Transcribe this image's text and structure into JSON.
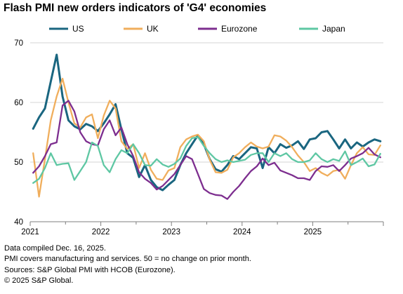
{
  "title": "Flash PMI new orders indicators of 'G4' economies",
  "notes": [
    "Data compiled Dec. 16, 2025.",
    "PMI covers manufacturing and services. 50 = no change on prior month.",
    "Sources: S&P Global PMI with HCOB (Eurozone).",
    "© 2025 S&P Global."
  ],
  "colors": {
    "US": "#1a6680",
    "UK": "#f0ae5c",
    "Eurozone": "#7d2e8f",
    "Japan": "#5ec7a3",
    "grid": "#d4d4d4",
    "axis": "#7f7f7f"
  },
  "chart_data": {
    "type": "line",
    "title": "Flash PMI new orders indicators of 'G4' economies",
    "xlabel": "",
    "ylabel": "",
    "ylim": [
      40,
      70
    ],
    "yticks": [
      40,
      50,
      60,
      70
    ],
    "xlim": [
      "2021-01",
      "2025-12"
    ],
    "xticks": [
      "2021",
      "2022",
      "2023",
      "2024",
      "2025"
    ],
    "grid": "horizontal",
    "legend": "top",
    "x": [
      "2021-01",
      "2021-02",
      "2021-03",
      "2021-04",
      "2021-05",
      "2021-06",
      "2021-07",
      "2021-08",
      "2021-09",
      "2021-10",
      "2021-11",
      "2021-12",
      "2022-01",
      "2022-02",
      "2022-03",
      "2022-04",
      "2022-05",
      "2022-06",
      "2022-07",
      "2022-08",
      "2022-09",
      "2022-10",
      "2022-11",
      "2022-12",
      "2023-01",
      "2023-02",
      "2023-03",
      "2023-04",
      "2023-05",
      "2023-06",
      "2023-07",
      "2023-08",
      "2023-09",
      "2023-10",
      "2023-11",
      "2023-12",
      "2024-01",
      "2024-02",
      "2024-03",
      "2024-04",
      "2024-05",
      "2024-06",
      "2024-07",
      "2024-08",
      "2024-09",
      "2024-10",
      "2024-11",
      "2024-12",
      "2025-01",
      "2025-02",
      "2025-03",
      "2025-04",
      "2025-05",
      "2025-06",
      "2025-07",
      "2025-08",
      "2025-09",
      "2025-10",
      "2025-11",
      "2025-12"
    ],
    "series": [
      {
        "name": "US",
        "values": [
          55.6,
          57.5,
          59,
          63.5,
          68,
          61,
          57,
          56,
          55.5,
          56.4,
          56,
          55.2,
          56.5,
          58,
          59.7,
          55.5,
          51.5,
          50.7,
          47.5,
          49.5,
          47,
          45.8,
          45.3,
          46.2,
          47,
          49.5,
          51.5,
          53,
          54.5,
          53,
          50.5,
          48.8,
          48.4,
          49.5,
          51,
          50.5,
          51.5,
          52.5,
          52.3,
          49,
          52.5,
          51.5,
          53,
          52.4,
          52.8,
          53.5,
          52.2,
          53.8,
          54,
          55,
          55.2,
          53.8,
          52.3,
          53.8,
          52.3,
          53.3,
          52.6,
          53.3,
          53.8,
          53.5
        ]
      },
      {
        "name": "UK",
        "values": [
          51.5,
          44.2,
          50.5,
          57,
          61,
          64,
          60,
          56.5,
          55.8,
          57.5,
          58,
          54,
          57.8,
          60.3,
          59,
          53.5,
          52.2,
          53,
          49,
          51.5,
          48.7,
          47.2,
          47,
          48.6,
          49,
          52.5,
          53.8,
          54.3,
          54.6,
          53.5,
          50.4,
          48.3,
          48.2,
          48.7,
          50.8,
          51.5,
          52.5,
          53.3,
          52.6,
          52.3,
          52.6,
          54.5,
          54.3,
          53.6,
          52.5,
          51.1,
          50,
          48.5,
          49,
          48.2,
          47.7,
          48.5,
          48.7,
          47.2,
          49.5,
          51.5,
          52.5,
          51.3,
          51.2,
          52.8
        ]
      },
      {
        "name": "Eurozone",
        "values": [
          48.2,
          49.3,
          51,
          53,
          53.3,
          59.5,
          60.3,
          58.5,
          55,
          53.5,
          53,
          52.8,
          55.5,
          57,
          54.5,
          55.8,
          53,
          51,
          48.3,
          47.2,
          46.5,
          45.4,
          46,
          47,
          48,
          49.5,
          51,
          50.5,
          48,
          45.5,
          44.8,
          44.5,
          44.4,
          43.8,
          45,
          46,
          47.3,
          48.5,
          49.3,
          50.6,
          49.5,
          49.9,
          48.6,
          48.2,
          47.8,
          47.3,
          47.3,
          47,
          48.5,
          49.3,
          49.2,
          49.5,
          48.5,
          49.5,
          50.6,
          51,
          51.5,
          52.4,
          51.3,
          50.8
        ]
      },
      {
        "name": "Japan",
        "values": [
          46.5,
          47.2,
          49,
          51.5,
          49.5,
          49.7,
          49.8,
          47,
          48.5,
          50,
          53.3,
          52.7,
          49.5,
          48.3,
          50.5,
          52,
          51.5,
          53,
          51.5,
          49.5,
          49.4,
          50.5,
          49.6,
          49.2,
          49.7,
          50.6,
          52.7,
          54,
          54.2,
          52.7,
          51.5,
          50.5,
          50,
          50.3,
          50,
          50.2,
          50.4,
          51.2,
          51.5,
          51.5,
          50,
          51.5,
          51,
          51.5,
          50.5,
          50,
          50,
          50.3,
          51.5,
          50.5,
          50,
          50.5,
          50.2,
          51.8,
          49.5,
          50,
          50.6,
          49.3,
          49.6,
          51.4
        ]
      }
    ]
  }
}
